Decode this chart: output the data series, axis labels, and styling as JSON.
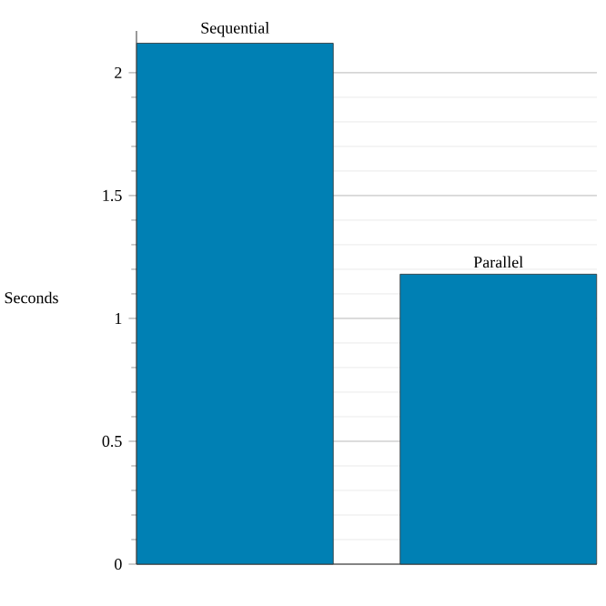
{
  "chart_data": {
    "type": "bar",
    "ylabel": "Seconds",
    "categories": [
      "Sequential",
      "Parallel"
    ],
    "values": [
      2.12,
      1.18
    ],
    "color": "#0080b4",
    "ylim": [
      0,
      2.17
    ],
    "yticks": [
      0,
      0.5,
      1,
      1.5,
      2
    ],
    "grid": "y"
  }
}
